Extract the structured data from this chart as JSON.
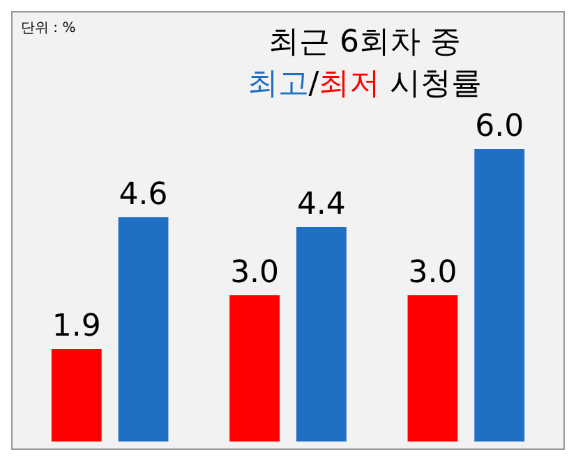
{
  "chart_data": {
    "type": "bar",
    "title": "최근 6회차 중",
    "legend_title": "시청률",
    "legend": "top",
    "annotations": [
      "단위 : %",
      "/"
    ],
    "categories": [
      null,
      null,
      null
    ],
    "series": [
      {
        "name": "최저",
        "color": "#ff0000",
        "values": [
          1.9,
          3.0,
          3.0
        ],
        "value_labels": [
          "1.9",
          "3.0",
          "3.0"
        ]
      },
      {
        "name": "최고",
        "color": "#1f6fc5",
        "values": [
          4.6,
          4.4,
          6.0
        ],
        "value_labels": [
          "4.6",
          "4.4",
          "6.0"
        ]
      }
    ],
    "tick_labels": false
  }
}
